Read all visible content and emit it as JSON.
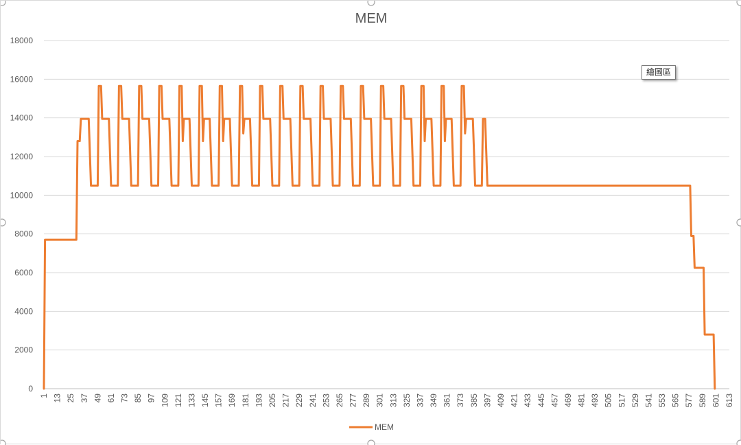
{
  "chart_data": {
    "type": "line",
    "title": "MEM",
    "xlabel": "",
    "ylabel": "",
    "x_min": 1,
    "x_max": 613,
    "x_tick_labels": [
      1,
      13,
      25,
      37,
      49,
      61,
      73,
      85,
      97,
      109,
      121,
      133,
      145,
      157,
      169,
      181,
      193,
      205,
      217,
      229,
      241,
      253,
      265,
      277,
      289,
      301,
      313,
      325,
      337,
      349,
      361,
      373,
      385,
      397,
      409,
      421,
      433,
      445,
      457,
      469,
      481,
      493,
      505,
      517,
      529,
      541,
      553,
      565,
      577,
      589,
      601,
      613
    ],
    "ylim": [
      0,
      18000
    ],
    "y_ticks": [
      0,
      2000,
      4000,
      6000,
      8000,
      10000,
      12000,
      14000,
      16000,
      18000
    ],
    "grid": true,
    "legend_position": "bottom",
    "series": [
      {
        "name": "MEM",
        "color": "#ED7D31",
        "points": [
          [
            1,
            0
          ],
          [
            2,
            7700
          ],
          [
            30,
            7700
          ],
          [
            31,
            12800
          ],
          [
            33,
            12800
          ],
          [
            34,
            13950
          ],
          [
            41,
            13950
          ],
          [
            43,
            10500
          ],
          [
            49,
            10500
          ],
          [
            50,
            15650
          ],
          [
            52,
            15650
          ],
          [
            53,
            13950
          ],
          [
            59,
            13950
          ],
          [
            61,
            10500
          ],
          [
            67,
            10500
          ],
          [
            68,
            15650
          ],
          [
            70,
            15650
          ],
          [
            71,
            13950
          ],
          [
            77,
            13950
          ],
          [
            79,
            10500
          ],
          [
            85,
            10500
          ],
          [
            86,
            15650
          ],
          [
            88,
            15650
          ],
          [
            89,
            13950
          ],
          [
            95,
            13950
          ],
          [
            97,
            10500
          ],
          [
            103,
            10500
          ],
          [
            104,
            15650
          ],
          [
            106,
            15650
          ],
          [
            107,
            13950
          ],
          [
            113,
            13950
          ],
          [
            115,
            10500
          ],
          [
            121,
            10500
          ],
          [
            122,
            15650
          ],
          [
            124,
            15650
          ],
          [
            125,
            12800
          ],
          [
            126,
            13950
          ],
          [
            131,
            13950
          ],
          [
            133,
            10500
          ],
          [
            139,
            10500
          ],
          [
            140,
            15650
          ],
          [
            142,
            15650
          ],
          [
            143,
            12800
          ],
          [
            144,
            13950
          ],
          [
            149,
            13950
          ],
          [
            151,
            10500
          ],
          [
            157,
            10500
          ],
          [
            158,
            15650
          ],
          [
            160,
            15650
          ],
          [
            161,
            12800
          ],
          [
            162,
            13950
          ],
          [
            167,
            13950
          ],
          [
            169,
            10500
          ],
          [
            175,
            10500
          ],
          [
            176,
            15650
          ],
          [
            178,
            15650
          ],
          [
            179,
            13200
          ],
          [
            180,
            13950
          ],
          [
            185,
            13950
          ],
          [
            187,
            10500
          ],
          [
            193,
            10500
          ],
          [
            194,
            15650
          ],
          [
            196,
            15650
          ],
          [
            197,
            13950
          ],
          [
            203,
            13950
          ],
          [
            205,
            10500
          ],
          [
            211,
            10500
          ],
          [
            212,
            15650
          ],
          [
            214,
            15650
          ],
          [
            215,
            13950
          ],
          [
            221,
            13950
          ],
          [
            223,
            10500
          ],
          [
            229,
            10500
          ],
          [
            230,
            15650
          ],
          [
            232,
            15650
          ],
          [
            233,
            13950
          ],
          [
            239,
            13950
          ],
          [
            241,
            10500
          ],
          [
            247,
            10500
          ],
          [
            248,
            15650
          ],
          [
            250,
            15650
          ],
          [
            251,
            13950
          ],
          [
            257,
            13950
          ],
          [
            259,
            10500
          ],
          [
            265,
            10500
          ],
          [
            266,
            15650
          ],
          [
            268,
            15650
          ],
          [
            269,
            13950
          ],
          [
            275,
            13950
          ],
          [
            277,
            10500
          ],
          [
            283,
            10500
          ],
          [
            284,
            15650
          ],
          [
            286,
            15650
          ],
          [
            287,
            13950
          ],
          [
            293,
            13950
          ],
          [
            295,
            10500
          ],
          [
            301,
            10500
          ],
          [
            302,
            15650
          ],
          [
            304,
            15650
          ],
          [
            305,
            13950
          ],
          [
            311,
            13950
          ],
          [
            313,
            10500
          ],
          [
            319,
            10500
          ],
          [
            320,
            15650
          ],
          [
            322,
            15650
          ],
          [
            323,
            13950
          ],
          [
            329,
            13950
          ],
          [
            331,
            10500
          ],
          [
            337,
            10500
          ],
          [
            338,
            15650
          ],
          [
            340,
            15650
          ],
          [
            341,
            12800
          ],
          [
            342,
            13950
          ],
          [
            347,
            13950
          ],
          [
            349,
            10500
          ],
          [
            355,
            10500
          ],
          [
            356,
            15650
          ],
          [
            358,
            15650
          ],
          [
            359,
            12800
          ],
          [
            360,
            13950
          ],
          [
            365,
            13950
          ],
          [
            367,
            10500
          ],
          [
            373,
            10500
          ],
          [
            374,
            15650
          ],
          [
            376,
            15650
          ],
          [
            377,
            13200
          ],
          [
            378,
            13950
          ],
          [
            384,
            13950
          ],
          [
            386,
            10500
          ],
          [
            392,
            10500
          ],
          [
            393,
            13950
          ],
          [
            395,
            13950
          ],
          [
            397,
            10500
          ],
          [
            578,
            10500
          ],
          [
            579,
            7900
          ],
          [
            581,
            7900
          ],
          [
            582,
            6250
          ],
          [
            590,
            6250
          ],
          [
            591,
            2800
          ],
          [
            599,
            2800
          ],
          [
            600,
            0
          ]
        ]
      }
    ]
  },
  "legend": {
    "label": "MEM"
  },
  "tooltip": {
    "text": "繪圖區"
  }
}
